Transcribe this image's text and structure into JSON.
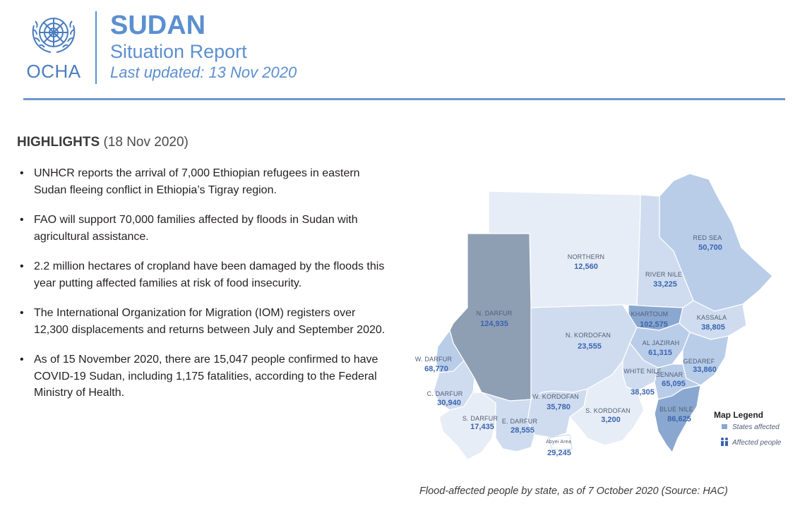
{
  "header": {
    "org": "OCHA",
    "title": "SUDAN",
    "subtitle": "Situation Report",
    "updated": "Last updated: 13 Nov 2020"
  },
  "highlights": {
    "label": "HIGHLIGHTS",
    "date": "(18 Nov 2020)",
    "items": [
      "UNHCR reports the arrival of 7,000 Ethiopian refugees in eastern Sudan fleeing conflict in Ethiopia’s Tigray region.",
      "FAO will support 70,000 families affected by floods in Sudan with agricultural assistance.",
      "2.2 million hectares of cropland have been damaged by the floods this year putting affected families at risk of food insecurity.",
      "The International Organization for Migration (IOM) registers over 12,300 displacements and returns between July and September 2020.",
      "As of 15 November 2020, there are 15,047 people confirmed to have COVID-19 Sudan, including 1,175 fatalities, according to the Federal Ministry of Health."
    ]
  },
  "map": {
    "states": [
      {
        "name": "NORTHERN",
        "value": "12,560"
      },
      {
        "name": "RED SEA",
        "value": "50,700"
      },
      {
        "name": "RIVER NILE",
        "value": "33,225"
      },
      {
        "name": "N. DARFUR",
        "value": "124,935"
      },
      {
        "name": "KHARTOUM",
        "value": "102,575"
      },
      {
        "name": "KASSALA",
        "value": "38,805"
      },
      {
        "name": "N. KORDOFAN",
        "value": "23,555"
      },
      {
        "name": "AL JAZIRAH",
        "value": "61,315"
      },
      {
        "name": "GEDAREF",
        "value": "33,860"
      },
      {
        "name": "W. DARFUR",
        "value": "68,770"
      },
      {
        "name": "WHITE NILE",
        "value": "38,305"
      },
      {
        "name": "SENNAR",
        "value": "65,095"
      },
      {
        "name": "C. DARFUR",
        "value": "30,940"
      },
      {
        "name": "W. KORDOFAN",
        "value": "35,780"
      },
      {
        "name": "S. KORDOFAN",
        "value": "3,200"
      },
      {
        "name": "S. DARFUR",
        "value": "17,435"
      },
      {
        "name": "E. DARFUR",
        "value": "28,555"
      },
      {
        "name": "BLUE NILE",
        "value": "86,625"
      },
      {
        "name": "Abyei Area",
        "value": "29,245"
      }
    ],
    "legend": {
      "title": "Map Legend",
      "states": "States affected",
      "people": "Affected people"
    },
    "colors": {
      "light": "#e7edf6",
      "medium_light": "#cfdcef",
      "medium": "#b9cde9",
      "dark": "#8aa8cf",
      "darkest": "#8e9fb4",
      "value_text": "#3a64b0"
    }
  },
  "caption": "Flood-affected people by state, as of 7 October 2020 (Source: HAC)"
}
